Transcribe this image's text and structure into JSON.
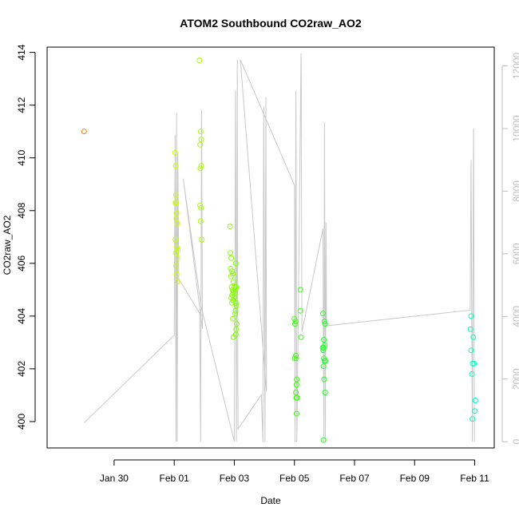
{
  "chart_data": {
    "type": "scatter",
    "title": "ATOM2 Southbound CO2raw_AO2",
    "xlabel": "Date",
    "ylabel": "CO2raw_AO2",
    "xlim": [
      -2.23,
      12.65
    ],
    "ylim": [
      399.0,
      414.2
    ],
    "y2lim": [
      -200,
      12600
    ],
    "x_ticks": [
      {
        "label": "Jan 30",
        "value": 0
      },
      {
        "label": "Feb 01",
        "value": 2
      },
      {
        "label": "Feb 03",
        "value": 4
      },
      {
        "label": "Feb 05",
        "value": 6
      },
      {
        "label": "Feb 07",
        "value": 8
      },
      {
        "label": "Feb 09",
        "value": 10
      },
      {
        "label": "Feb 11",
        "value": 12
      }
    ],
    "y_ticks": [
      {
        "label": "400",
        "value": 400
      },
      {
        "label": "402",
        "value": 402
      },
      {
        "label": "404",
        "value": 404
      },
      {
        "label": "406",
        "value": 406
      },
      {
        "label": "408",
        "value": 408
      },
      {
        "label": "410",
        "value": 410
      },
      {
        "label": "412",
        "value": 412
      },
      {
        "label": "414",
        "value": 414
      }
    ],
    "y2_ticks": [
      {
        "label": "0",
        "value": 0
      },
      {
        "label": "2000",
        "value": 2000
      },
      {
        "label": "4000",
        "value": 4000
      },
      {
        "label": "6000",
        "value": 6000
      },
      {
        "label": "8000",
        "value": 8000
      },
      {
        "label": "10000",
        "value": 10000
      },
      {
        "label": "12000",
        "value": 12000
      }
    ],
    "grid": false,
    "legend": "none",
    "colors": {
      "secondary_line": "#c8c8c8",
      "right_axis": "#bebebe",
      "point_palette": [
        "#ff8000",
        "#e8ff00",
        "#9bff00",
        "#50ff00",
        "#14ff40",
        "#00ff90",
        "#00ffc0"
      ]
    },
    "series": [
      {
        "role": "points",
        "points": [
          {
            "x": -1.0,
            "y": 411.0
          },
          {
            "x": 2.03,
            "y": 410.2
          },
          {
            "x": 2.05,
            "y": 409.7
          },
          {
            "x": 2.06,
            "y": 408.6
          },
          {
            "x": 2.07,
            "y": 408.3
          },
          {
            "x": 2.08,
            "y": 407.9
          },
          {
            "x": 2.1,
            "y": 407.5
          },
          {
            "x": 2.04,
            "y": 406.9
          },
          {
            "x": 2.09,
            "y": 406.6
          },
          {
            "x": 2.05,
            "y": 406.4
          },
          {
            "x": 2.11,
            "y": 406.2
          },
          {
            "x": 2.06,
            "y": 405.9
          },
          {
            "x": 2.08,
            "y": 405.6
          },
          {
            "x": 2.1,
            "y": 405.3
          },
          {
            "x": 2.12,
            "y": 406.5
          },
          {
            "x": 2.04,
            "y": 408.3
          },
          {
            "x": 2.07,
            "y": 407.7
          },
          {
            "x": 2.84,
            "y": 413.7
          },
          {
            "x": 2.88,
            "y": 411.0
          },
          {
            "x": 2.9,
            "y": 410.7
          },
          {
            "x": 2.86,
            "y": 410.5
          },
          {
            "x": 2.87,
            "y": 409.6
          },
          {
            "x": 2.9,
            "y": 409.7
          },
          {
            "x": 2.86,
            "y": 408.2
          },
          {
            "x": 2.89,
            "y": 408.1
          },
          {
            "x": 2.88,
            "y": 407.6
          },
          {
            "x": 2.92,
            "y": 406.9
          },
          {
            "x": 4.05,
            "y": 406.0
          },
          {
            "x": 4.01,
            "y": 405.1
          },
          {
            "x": 4.04,
            "y": 405.0
          },
          {
            "x": 4.06,
            "y": 405.1
          },
          {
            "x": 4.03,
            "y": 404.9
          },
          {
            "x": 4.05,
            "y": 404.5
          },
          {
            "x": 4.07,
            "y": 404.4
          },
          {
            "x": 4.04,
            "y": 404.2
          },
          {
            "x": 4.03,
            "y": 404.1
          },
          {
            "x": 4.08,
            "y": 403.7
          },
          {
            "x": 4.06,
            "y": 403.5
          },
          {
            "x": 4.05,
            "y": 403.3
          },
          {
            "x": 3.86,
            "y": 407.4
          },
          {
            "x": 3.87,
            "y": 406.4
          },
          {
            "x": 3.9,
            "y": 406.2
          },
          {
            "x": 3.88,
            "y": 405.8
          },
          {
            "x": 3.92,
            "y": 405.7
          },
          {
            "x": 3.95,
            "y": 405.6
          },
          {
            "x": 3.89,
            "y": 405.5
          },
          {
            "x": 3.97,
            "y": 405.3
          },
          {
            "x": 3.91,
            "y": 405.1
          },
          {
            "x": 3.94,
            "y": 405.0
          },
          {
            "x": 3.96,
            "y": 404.9
          },
          {
            "x": 3.93,
            "y": 404.8
          },
          {
            "x": 3.9,
            "y": 404.7
          },
          {
            "x": 3.99,
            "y": 404.7
          },
          {
            "x": 3.96,
            "y": 404.6
          },
          {
            "x": 3.92,
            "y": 404.5
          },
          {
            "x": 3.95,
            "y": 403.9
          },
          {
            "x": 3.97,
            "y": 403.2
          },
          {
            "x": 6.0,
            "y": 403.9
          },
          {
            "x": 6.02,
            "y": 403.7
          },
          {
            "x": 6.04,
            "y": 403.8
          },
          {
            "x": 6.05,
            "y": 402.5
          },
          {
            "x": 6.01,
            "y": 402.4
          },
          {
            "x": 6.06,
            "y": 402.4
          },
          {
            "x": 6.08,
            "y": 401.6
          },
          {
            "x": 6.07,
            "y": 401.4
          },
          {
            "x": 6.05,
            "y": 401.1
          },
          {
            "x": 6.06,
            "y": 400.9
          },
          {
            "x": 6.09,
            "y": 400.9
          },
          {
            "x": 6.07,
            "y": 400.3
          },
          {
            "x": 6.2,
            "y": 405.0
          },
          {
            "x": 6.2,
            "y": 404.2
          },
          {
            "x": 6.22,
            "y": 403.2
          },
          {
            "x": 6.95,
            "y": 404.1
          },
          {
            "x": 7.0,
            "y": 403.8
          },
          {
            "x": 7.02,
            "y": 403.7
          },
          {
            "x": 6.98,
            "y": 403.1
          },
          {
            "x": 6.94,
            "y": 402.8
          },
          {
            "x": 6.97,
            "y": 402.8
          },
          {
            "x": 7.01,
            "y": 402.9
          },
          {
            "x": 6.96,
            "y": 402.7
          },
          {
            "x": 6.98,
            "y": 402.4
          },
          {
            "x": 7.0,
            "y": 402.3
          },
          {
            "x": 6.97,
            "y": 402.1
          },
          {
            "x": 7.03,
            "y": 402.3
          },
          {
            "x": 6.99,
            "y": 401.6
          },
          {
            "x": 7.02,
            "y": 401.1
          },
          {
            "x": 6.97,
            "y": 399.3
          },
          {
            "x": 11.88,
            "y": 404.0
          },
          {
            "x": 11.86,
            "y": 403.5
          },
          {
            "x": 11.95,
            "y": 403.2
          },
          {
            "x": 11.88,
            "y": 402.7
          },
          {
            "x": 11.93,
            "y": 402.2
          },
          {
            "x": 11.98,
            "y": 402.2
          },
          {
            "x": 11.91,
            "y": 401.8
          },
          {
            "x": 12.02,
            "y": 400.8
          },
          {
            "x": 12.0,
            "y": 400.4
          },
          {
            "x": 11.92,
            "y": 400.1
          }
        ]
      },
      {
        "role": "secondary_axis_line",
        "axis": "right",
        "points": [
          {
            "x": -1.0,
            "y": 600
          },
          {
            "x": 2.0,
            "y": 3400
          },
          {
            "x": 2.03,
            "y": 9800
          },
          {
            "x": 2.06,
            "y": 0
          },
          {
            "x": 2.08,
            "y": 10500
          },
          {
            "x": 2.1,
            "y": 0
          },
          {
            "x": 2.12,
            "y": 9200
          },
          {
            "x": 2.15,
            "y": 5200
          },
          {
            "x": 2.85,
            "y": 4100
          },
          {
            "x": 2.88,
            "y": 0
          },
          {
            "x": 2.91,
            "y": 10600
          },
          {
            "x": 2.94,
            "y": 3600
          },
          {
            "x": 2.3,
            "y": 8400
          },
          {
            "x": 2.9,
            "y": 4300
          },
          {
            "x": 4.0,
            "y": 0
          },
          {
            "x": 4.04,
            "y": 11200
          },
          {
            "x": 4.07,
            "y": 0
          },
          {
            "x": 4.1,
            "y": 12200
          },
          {
            "x": 4.12,
            "y": 400
          },
          {
            "x": 4.9,
            "y": 1500
          },
          {
            "x": 4.95,
            "y": 0
          },
          {
            "x": 4.98,
            "y": 10700
          },
          {
            "x": 5.02,
            "y": 0
          },
          {
            "x": 5.05,
            "y": 11000
          },
          {
            "x": 5.07,
            "y": 1600
          },
          {
            "x": 4.2,
            "y": 12200
          },
          {
            "x": 6.0,
            "y": 8200
          },
          {
            "x": 6.02,
            "y": 0
          },
          {
            "x": 6.05,
            "y": 11200
          },
          {
            "x": 6.08,
            "y": 0
          },
          {
            "x": 6.15,
            "y": 5800
          },
          {
            "x": 6.22,
            "y": 12400
          },
          {
            "x": 6.25,
            "y": 3500
          },
          {
            "x": 6.95,
            "y": 6800
          },
          {
            "x": 6.98,
            "y": 0
          },
          {
            "x": 7.0,
            "y": 10200
          },
          {
            "x": 7.03,
            "y": 0
          },
          {
            "x": 7.05,
            "y": 7000
          },
          {
            "x": 7.07,
            "y": 3700
          },
          {
            "x": 11.85,
            "y": 4200
          },
          {
            "x": 11.88,
            "y": 9000
          },
          {
            "x": 11.92,
            "y": 0
          },
          {
            "x": 11.96,
            "y": 10000
          },
          {
            "x": 11.99,
            "y": 0
          }
        ]
      }
    ]
  }
}
